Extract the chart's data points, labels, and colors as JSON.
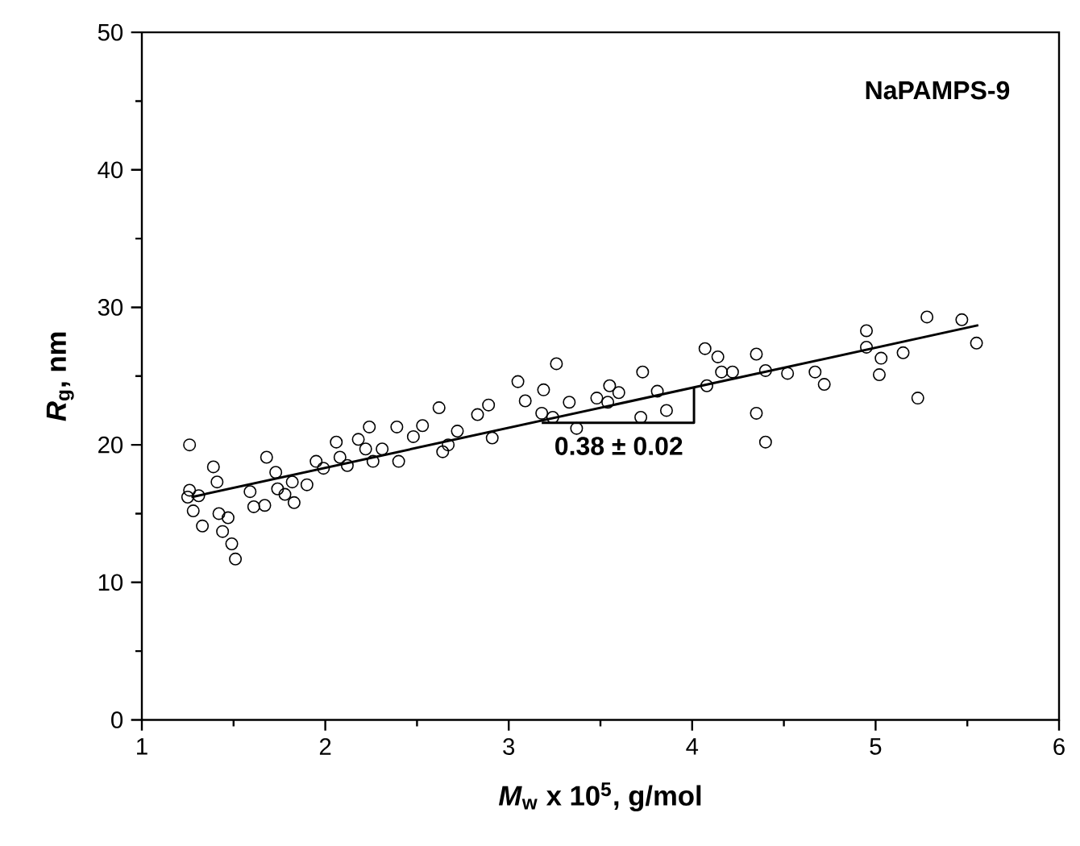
{
  "chart_data": {
    "type": "scatter",
    "title": "NaPAMPS-9",
    "xlabel": "*M*$_{w}$ x 10$^{5}$, g/mol",
    "ylabel": "*R*$_{g}$, nm",
    "xlim": [
      1,
      6
    ],
    "xticks": [
      1,
      2,
      3,
      4,
      5,
      6
    ],
    "ylim": [
      0,
      50
    ],
    "yticks": [
      0,
      10,
      20,
      30,
      40,
      50
    ],
    "annotations": [
      {
        "text": "0.38 ± 0.02",
        "x": 3.6,
        "y": 21.6
      }
    ],
    "series": [
      {
        "marker": "circle",
        "color": "#000000",
        "x": [
          1.26,
          1.26,
          1.25,
          1.31,
          1.28,
          1.33,
          1.39,
          1.41,
          1.42,
          1.47,
          1.44,
          1.49,
          1.51,
          1.59,
          1.61,
          1.67,
          1.68,
          1.73,
          1.74,
          1.78,
          1.82,
          1.83,
          1.9,
          1.95,
          1.99,
          2.06,
          2.08,
          2.12,
          2.18,
          2.22,
          2.24,
          2.26,
          2.31,
          2.39,
          2.4,
          2.48,
          2.53,
          2.62,
          2.64,
          2.67,
          2.72,
          2.83,
          2.89,
          2.91,
          3.05,
          3.09,
          3.19,
          3.18,
          3.24,
          3.26,
          3.33,
          3.37,
          3.48,
          3.55,
          3.54,
          3.6,
          3.73,
          3.72,
          3.81,
          3.86,
          4.07,
          4.14,
          4.16,
          4.08,
          4.22,
          4.35,
          4.35,
          4.4,
          4.4,
          4.52,
          4.67,
          4.72,
          4.95,
          4.95,
          5.03,
          5.02,
          5.15,
          5.23,
          5.28,
          5.47,
          5.55
        ],
        "values": [
          20.0,
          16.7,
          16.2,
          16.3,
          15.2,
          14.1,
          18.4,
          17.3,
          15.0,
          14.7,
          13.7,
          12.8,
          11.7,
          16.6,
          15.5,
          15.6,
          19.1,
          18.0,
          16.8,
          16.4,
          17.3,
          15.8,
          17.1,
          18.8,
          18.3,
          20.2,
          19.1,
          18.5,
          20.4,
          19.7,
          21.3,
          18.8,
          19.7,
          21.3,
          18.8,
          20.6,
          21.4,
          22.7,
          19.5,
          20.0,
          21.0,
          22.2,
          22.9,
          20.5,
          24.6,
          23.2,
          24.0,
          22.3,
          22.0,
          25.9,
          23.1,
          21.2,
          23.4,
          24.3,
          23.1,
          23.8,
          25.3,
          22.0,
          23.9,
          22.5,
          27.0,
          26.4,
          25.3,
          24.3,
          25.3,
          26.6,
          22.3,
          20.2,
          25.4,
          25.2,
          25.3,
          24.4,
          28.3,
          27.1,
          26.3,
          25.1,
          26.7,
          23.4,
          29.3,
          29.1,
          27.4
        ]
      },
      {
        "type": "line",
        "color": "#000000",
        "x": [
          1.27,
          5.56
        ],
        "values": [
          16.2,
          28.7
        ]
      },
      {
        "type": "line",
        "color": "#000000",
        "x": [
          3.18,
          4.01,
          4.01
        ],
        "values": [
          21.6,
          21.6,
          24.2
        ]
      }
    ]
  }
}
